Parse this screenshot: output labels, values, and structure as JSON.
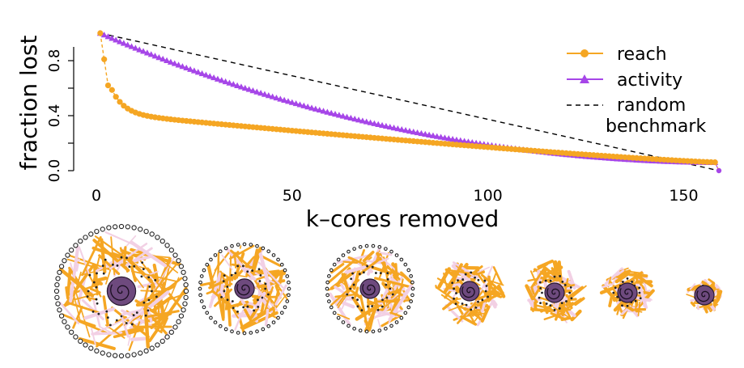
{
  "chart_data": {
    "type": "line",
    "xlabel": "k–cores removed",
    "ylabel": "fraction lost",
    "xlim": [
      0,
      160
    ],
    "ylim": [
      0,
      1
    ],
    "xticks": [
      0,
      50,
      100,
      150
    ],
    "xtick_labels": [
      "0",
      "50",
      "100",
      "150"
    ],
    "yticks": [
      0,
      0.4,
      0.8
    ],
    "ytick_labels": [
      "0.0",
      "0.4",
      "0.8"
    ],
    "grid": false,
    "legend_position": "top-right",
    "series": [
      {
        "name": "reach",
        "color": "#f5a623",
        "marker": "circle",
        "shape": {
          "x_range": [
            1,
            159
          ],
          "start": 1.0,
          "knee_at_3": 0.62,
          "value_at_10": 0.41,
          "value_at_50": 0.26,
          "value_at_100": 0.17,
          "value_at_158": 0.06,
          "end": 0.0
        }
      },
      {
        "name": "activity",
        "color": "#a646e8",
        "marker": "triangle",
        "shape": {
          "x_range": [
            1,
            159
          ],
          "start": 1.0,
          "value_at_10": 0.8,
          "value_at_50": 0.45,
          "value_at_100": 0.22,
          "value_at_158": 0.06,
          "end": 0.0
        }
      },
      {
        "name": "random\nbenchmark",
        "color": "#000000",
        "style": "dashed",
        "x": [
          1,
          159
        ],
        "values": [
          1.0,
          0.0
        ]
      }
    ],
    "legend": [
      {
        "label": "reach"
      },
      {
        "label": "activity"
      },
      {
        "label": "random",
        "label2": "benchmark"
      }
    ]
  },
  "networks": {
    "count": 7,
    "edge_color": "#f5a623",
    "edge_secondary_color": "#f2d0e4",
    "core_color": "#6e4a7e",
    "node_color": "#222222"
  }
}
